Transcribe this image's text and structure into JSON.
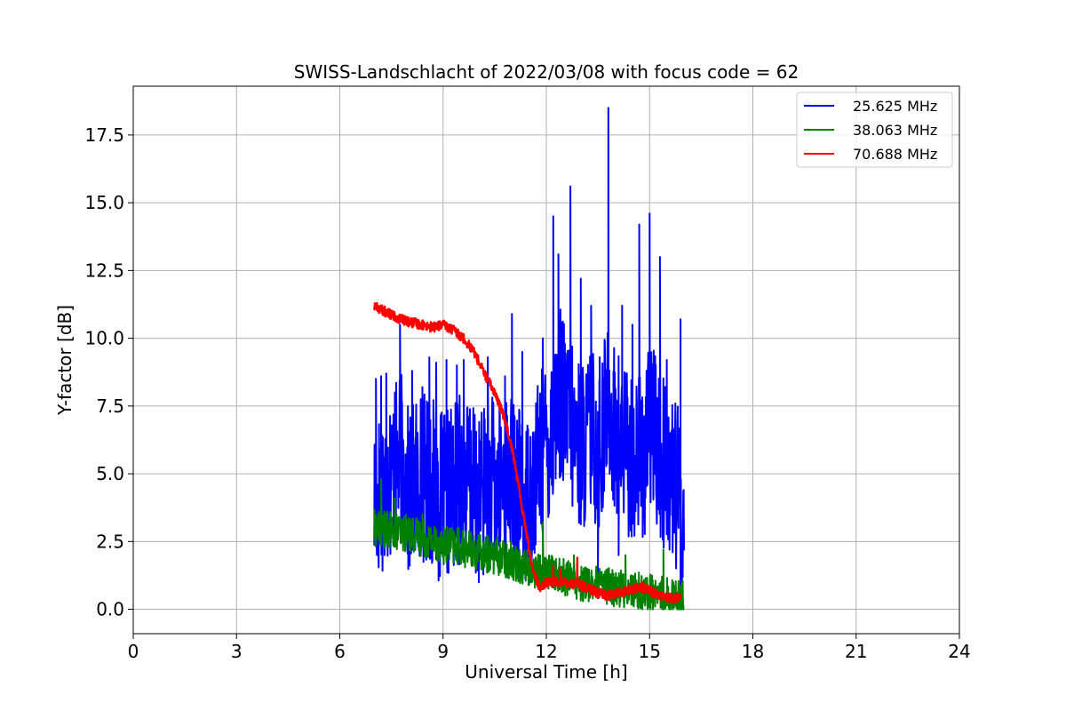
{
  "chart_data": {
    "type": "line",
    "title": "SWISS-Landschlacht of 2022/03/08 with focus code = 62",
    "xlabel": "Universal Time [h]",
    "ylabel": "Y-factor [dB]",
    "xlim": [
      0,
      24
    ],
    "ylim": [
      -0.9,
      19.3
    ],
    "xticks": [
      0,
      3,
      6,
      9,
      12,
      15,
      18,
      21,
      24
    ],
    "xtick_labels": [
      "0",
      "3",
      "6",
      "9",
      "12",
      "15",
      "18",
      "21",
      "24"
    ],
    "yticks": [
      0.0,
      2.5,
      5.0,
      7.5,
      10.0,
      12.5,
      15.0,
      17.5
    ],
    "ytick_labels": [
      "0.0",
      "2.5",
      "5.0",
      "7.5",
      "10.0",
      "12.5",
      "15.0",
      "17.5"
    ],
    "grid": true,
    "legend_position": "top-right",
    "series": [
      {
        "name": "25.625 MHz",
        "color": "#0000ff",
        "line_width": 2,
        "x": [
          7.0,
          7.2,
          7.5,
          7.8,
          8.0,
          8.3,
          8.6,
          9.0,
          9.3,
          9.6,
          10.0,
          10.3,
          10.6,
          10.9,
          11.2,
          11.5,
          11.8,
          12.0,
          12.2,
          12.4,
          12.6,
          12.8,
          13.0,
          13.3,
          13.6,
          13.8,
          14.0,
          14.3,
          14.6,
          14.9,
          15.1,
          15.3,
          15.6,
          15.8,
          16.0
        ],
        "y": [
          4.0,
          4.5,
          5.0,
          5.5,
          4.2,
          5.0,
          4.8,
          4.0,
          4.5,
          5.0,
          4.0,
          4.8,
          4.5,
          5.0,
          4.2,
          4.0,
          5.5,
          6.0,
          7.0,
          8.0,
          7.0,
          6.5,
          6.0,
          6.5,
          6.0,
          8.0,
          6.5,
          6.0,
          5.5,
          6.0,
          7.0,
          5.5,
          5.0,
          4.5,
          3.0
        ],
        "spikes": [
          {
            "x": 7.05,
            "y": 8.5
          },
          {
            "x": 7.2,
            "y": 8.6
          },
          {
            "x": 7.35,
            "y": 8.7
          },
          {
            "x": 7.6,
            "y": 8.0
          },
          {
            "x": 7.75,
            "y": 10.5
          },
          {
            "x": 8.1,
            "y": 8.8
          },
          {
            "x": 8.4,
            "y": 8.2
          },
          {
            "x": 8.6,
            "y": 9.3
          },
          {
            "x": 8.8,
            "y": 9.1
          },
          {
            "x": 9.1,
            "y": 9.2
          },
          {
            "x": 9.4,
            "y": 9.0
          },
          {
            "x": 9.6,
            "y": 9.2
          },
          {
            "x": 10.3,
            "y": 9.3
          },
          {
            "x": 10.8,
            "y": 8.6
          },
          {
            "x": 11.0,
            "y": 10.9
          },
          {
            "x": 11.3,
            "y": 9.5
          },
          {
            "x": 11.9,
            "y": 10.0
          },
          {
            "x": 12.2,
            "y": 14.5
          },
          {
            "x": 12.35,
            "y": 13.1
          },
          {
            "x": 12.7,
            "y": 15.6
          },
          {
            "x": 13.0,
            "y": 12.2
          },
          {
            "x": 13.3,
            "y": 11.2
          },
          {
            "x": 13.55,
            "y": 9.3
          },
          {
            "x": 13.8,
            "y": 18.5
          },
          {
            "x": 14.2,
            "y": 11.2
          },
          {
            "x": 14.5,
            "y": 10.5
          },
          {
            "x": 14.7,
            "y": 14.2
          },
          {
            "x": 15.0,
            "y": 14.6
          },
          {
            "x": 15.3,
            "y": 13.0
          },
          {
            "x": 15.5,
            "y": 9.2
          },
          {
            "x": 15.9,
            "y": 10.7
          }
        ],
        "dips": [
          {
            "x": 7.1,
            "y": 2.0
          },
          {
            "x": 7.3,
            "y": 2.0
          },
          {
            "x": 9.1,
            "y": 2.2
          },
          {
            "x": 11.6,
            "y": 2.2
          },
          {
            "x": 13.5,
            "y": 1.3
          },
          {
            "x": 14.1,
            "y": 2.0
          },
          {
            "x": 14.8,
            "y": 3.0
          },
          {
            "x": 15.9,
            "y": 0.0
          }
        ]
      },
      {
        "name": "38.063 MHz",
        "color": "#008000",
        "line_width": 2,
        "x": [
          7.0,
          7.5,
          8.0,
          8.5,
          9.0,
          9.5,
          10.0,
          10.5,
          11.0,
          11.5,
          12.0,
          12.5,
          13.0,
          13.5,
          14.0,
          14.5,
          15.0,
          15.5,
          16.0
        ],
        "y": [
          3.0,
          2.9,
          2.8,
          2.6,
          2.4,
          2.3,
          2.1,
          2.0,
          1.8,
          1.5,
          1.4,
          1.2,
          1.0,
          0.9,
          0.8,
          0.7,
          0.6,
          0.5,
          0.4
        ],
        "spikes": [
          {
            "x": 7.2,
            "y": 4.8
          },
          {
            "x": 7.6,
            "y": 4.1
          },
          {
            "x": 8.4,
            "y": 3.5
          },
          {
            "x": 11.9,
            "y": 3.2
          },
          {
            "x": 12.8,
            "y": 2.0
          },
          {
            "x": 14.3,
            "y": 2.0
          },
          {
            "x": 15.4,
            "y": 2.2
          }
        ]
      },
      {
        "name": "70.688 MHz",
        "color": "#ff0000",
        "line_width": 2.5,
        "x": [
          7.0,
          7.3,
          7.6,
          8.0,
          8.4,
          8.7,
          9.0,
          9.3,
          9.6,
          9.9,
          10.2,
          10.5,
          10.8,
          11.0,
          11.2,
          11.4,
          11.6,
          11.8,
          12.0,
          12.3,
          12.6,
          12.9,
          13.2,
          13.5,
          13.8,
          14.1,
          14.4,
          14.7,
          15.0,
          15.3,
          15.6,
          15.9
        ],
        "y": [
          11.2,
          11.0,
          10.8,
          10.6,
          10.5,
          10.4,
          10.5,
          10.3,
          10.0,
          9.5,
          8.7,
          8.0,
          7.0,
          6.0,
          4.5,
          3.0,
          1.5,
          0.8,
          1.0,
          1.0,
          1.0,
          0.9,
          0.8,
          0.6,
          0.5,
          0.6,
          0.7,
          0.8,
          0.7,
          0.5,
          0.4,
          0.4
        ],
        "spikes": [
          {
            "x": 12.2,
            "y": 1.6
          },
          {
            "x": 12.4,
            "y": 1.5
          },
          {
            "x": 12.9,
            "y": 1.9
          },
          {
            "x": 14.8,
            "y": 1.0
          }
        ]
      }
    ]
  }
}
